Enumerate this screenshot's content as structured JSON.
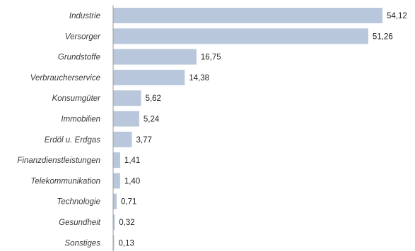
{
  "chart_data": {
    "type": "bar",
    "orientation": "horizontal",
    "categories": [
      "Industrie",
      "Versorger",
      "Grundstoffe",
      "Verbraucherservice",
      "Konsumgüter",
      "Immobilien",
      "Erdöl u. Erdgas",
      "Finanzdienstleistungen",
      "Telekommunikation",
      "Technologie",
      "Gesundheit",
      "Sonstiges"
    ],
    "values": [
      54.12,
      51.26,
      16.75,
      14.38,
      5.62,
      5.24,
      3.77,
      1.41,
      1.4,
      0.71,
      0.32,
      0.13
    ],
    "value_labels": [
      "54,12",
      "51,26",
      "16,75",
      "14,38",
      "5,62",
      "5,24",
      "3,77",
      "1,41",
      "1,40",
      "0,71",
      "0,32",
      "0,13"
    ],
    "xlim": [
      0,
      54.12
    ],
    "grid": false,
    "legend": "none",
    "bar_color": "#b8c7dc",
    "axis_color": "#9a9a9a"
  }
}
